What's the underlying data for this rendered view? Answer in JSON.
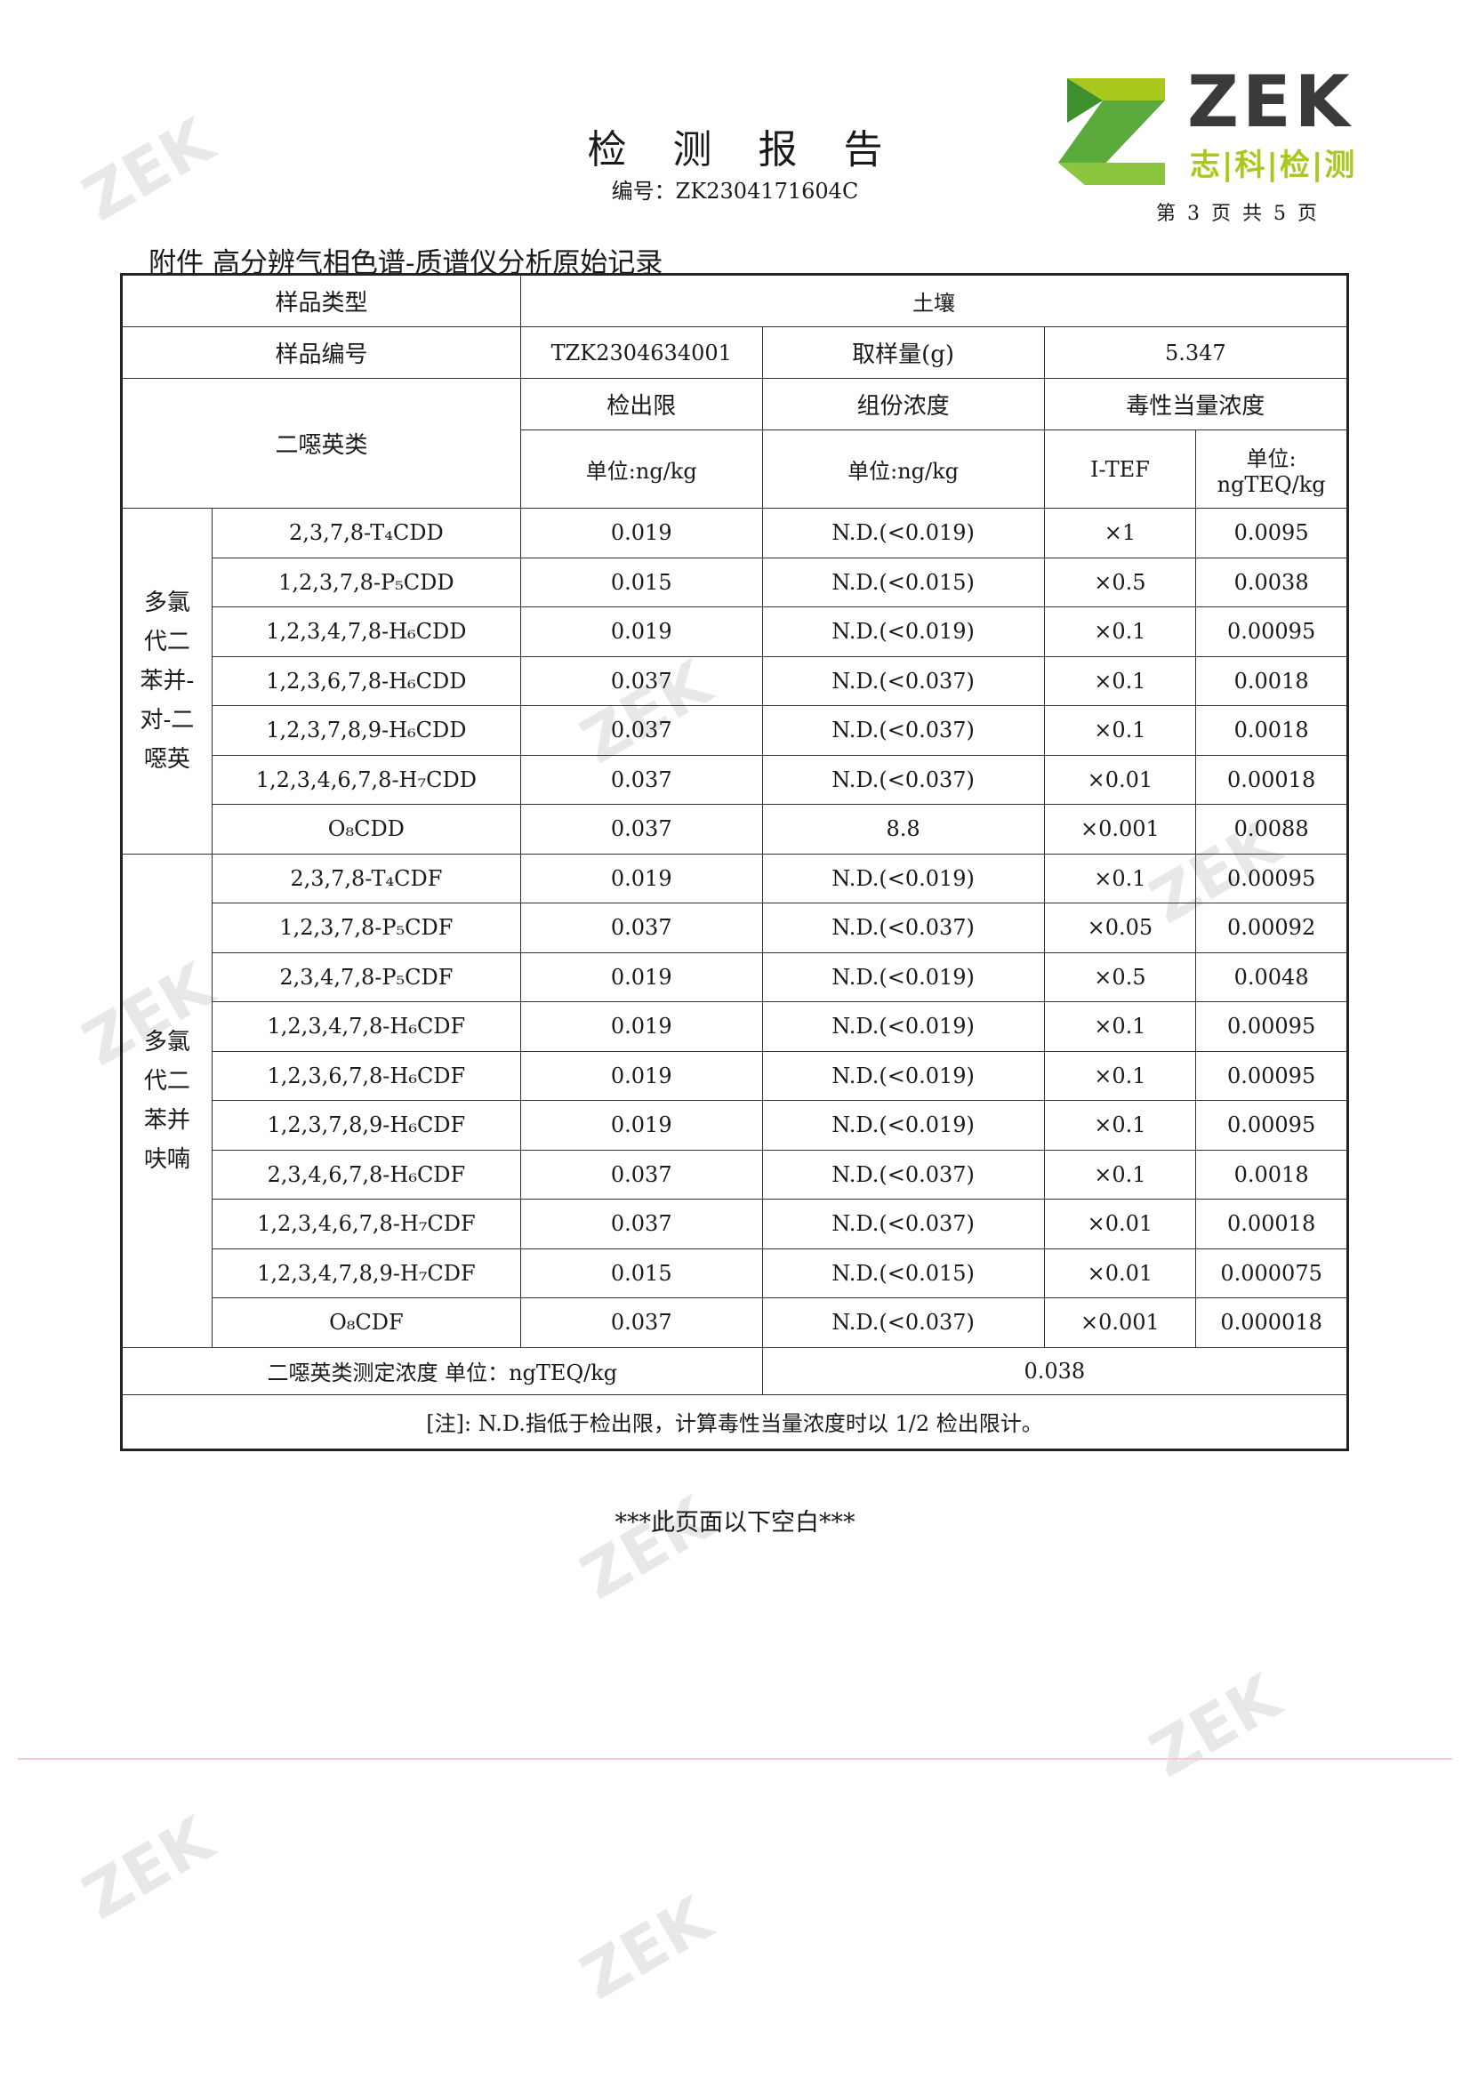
{
  "header": {
    "title": "检测报告",
    "doc_number": "编号：ZK2304171604C",
    "page_info": "第 3 页 共 5 页",
    "logo": {
      "brand": "ZEK",
      "tagline": "志|科|检|测",
      "colors": {
        "green": "#5aaa3c",
        "lime": "#a8c81e",
        "gray": "#3a3a3a"
      }
    }
  },
  "attachment_title": "附件 高分辨气相色谱-质谱仪分析原始记录",
  "table": {
    "sample_type_label": "样品类型",
    "sample_type": "土壤",
    "sample_id_label": "样品编号",
    "sample_id": "TZK2304634001",
    "sample_mass_label": "取样量(g)",
    "sample_mass": "5.347",
    "dioxin_label": "二噁英类",
    "col_lod": "检出限",
    "col_conc": "组份浓度",
    "col_teq": "毒性当量浓度",
    "unit_lod": "单位:ng/kg",
    "unit_conc": "单位:ng/kg",
    "col_itef": "I-TEF",
    "unit_teq_1": "单位:",
    "unit_teq_2": "ngTEQ/kg",
    "groups": [
      {
        "label": "多氯代二苯并-对-二噁英",
        "rows": [
          {
            "compound": "2,3,7,8-T₄CDD",
            "lod": "0.019",
            "conc": "N.D.(<0.019)",
            "itef": "×1",
            "teq": "0.0095"
          },
          {
            "compound": "1,2,3,7,8-P₅CDD",
            "lod": "0.015",
            "conc": "N.D.(<0.015)",
            "itef": "×0.5",
            "teq": "0.0038"
          },
          {
            "compound": "1,2,3,4,7,8-H₆CDD",
            "lod": "0.019",
            "conc": "N.D.(<0.019)",
            "itef": "×0.1",
            "teq": "0.00095"
          },
          {
            "compound": "1,2,3,6,7,8-H₆CDD",
            "lod": "0.037",
            "conc": "N.D.(<0.037)",
            "itef": "×0.1",
            "teq": "0.0018"
          },
          {
            "compound": "1,2,3,7,8,9-H₆CDD",
            "lod": "0.037",
            "conc": "N.D.(<0.037)",
            "itef": "×0.1",
            "teq": "0.0018"
          },
          {
            "compound": "1,2,3,4,6,7,8-H₇CDD",
            "lod": "0.037",
            "conc": "N.D.(<0.037)",
            "itef": "×0.01",
            "teq": "0.00018"
          },
          {
            "compound": "O₈CDD",
            "lod": "0.037",
            "conc": "8.8",
            "itef": "×0.001",
            "teq": "0.0088"
          }
        ]
      },
      {
        "label": "多氯代二苯并呋喃",
        "rows": [
          {
            "compound": "2,3,7,8-T₄CDF",
            "lod": "0.019",
            "conc": "N.D.(<0.019)",
            "itef": "×0.1",
            "teq": "0.00095"
          },
          {
            "compound": "1,2,3,7,8-P₅CDF",
            "lod": "0.037",
            "conc": "N.D.(<0.037)",
            "itef": "×0.05",
            "teq": "0.00092"
          },
          {
            "compound": "2,3,4,7,8-P₅CDF",
            "lod": "0.019",
            "conc": "N.D.(<0.019)",
            "itef": "×0.5",
            "teq": "0.0048"
          },
          {
            "compound": "1,2,3,4,7,8-H₆CDF",
            "lod": "0.019",
            "conc": "N.D.(<0.019)",
            "itef": "×0.1",
            "teq": "0.00095"
          },
          {
            "compound": "1,2,3,6,7,8-H₆CDF",
            "lod": "0.019",
            "conc": "N.D.(<0.019)",
            "itef": "×0.1",
            "teq": "0.00095"
          },
          {
            "compound": "1,2,3,7,8,9-H₆CDF",
            "lod": "0.019",
            "conc": "N.D.(<0.019)",
            "itef": "×0.1",
            "teq": "0.00095"
          },
          {
            "compound": "2,3,4,6,7,8-H₆CDF",
            "lod": "0.037",
            "conc": "N.D.(<0.037)",
            "itef": "×0.1",
            "teq": "0.0018"
          },
          {
            "compound": "1,2,3,4,6,7,8-H₇CDF",
            "lod": "0.037",
            "conc": "N.D.(<0.037)",
            "itef": "×0.01",
            "teq": "0.00018"
          },
          {
            "compound": "1,2,3,4,7,8,9-H₇CDF",
            "lod": "0.015",
            "conc": "N.D.(<0.015)",
            "itef": "×0.01",
            "teq": "0.000075"
          },
          {
            "compound": "O₈CDF",
            "lod": "0.037",
            "conc": "N.D.(<0.037)",
            "itef": "×0.001",
            "teq": "0.000018"
          }
        ]
      }
    ],
    "total_label": "二噁英类测定浓度 单位：ngTEQ/kg",
    "total_value": "0.038",
    "note": "[注]: N.D.指低于检出限，计算毒性当量浓度时以 1/2 检出限计。"
  },
  "end_note": "***此页面以下空白***"
}
